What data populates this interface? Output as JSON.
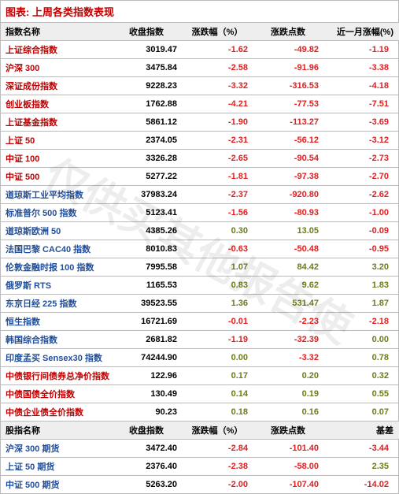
{
  "title": "图表: 上周各类指数表现",
  "watermark": "仅供买其他报告使",
  "columns": [
    "指数名称",
    "收盘指数",
    "涨跌幅（%）",
    "涨跌点数",
    "近一月涨幅(%)"
  ],
  "columns2": [
    "股指名称",
    "收盘指数",
    "涨跌幅（%）",
    "涨跌点数",
    "基差"
  ],
  "section1": [
    {
      "name": "上证综合指数",
      "nameClass": "name-red",
      "close": "3019.47",
      "pct": "-1.62",
      "pctClass": "red",
      "pts": "-49.82",
      "ptsClass": "red",
      "m": "-1.19",
      "mClass": "red"
    },
    {
      "name": "沪深 300",
      "nameClass": "name-red",
      "close": "3475.84",
      "pct": "-2.58",
      "pctClass": "red",
      "pts": "-91.96",
      "ptsClass": "red",
      "m": "-3.38",
      "mClass": "red"
    },
    {
      "name": "深证成份指数",
      "nameClass": "name-red",
      "close": "9228.23",
      "pct": "-3.32",
      "pctClass": "red",
      "pts": "-316.53",
      "ptsClass": "red",
      "m": "-4.18",
      "mClass": "red"
    },
    {
      "name": "创业板指数",
      "nameClass": "name-red",
      "close": "1762.88",
      "pct": "-4.21",
      "pctClass": "red",
      "pts": "-77.53",
      "ptsClass": "red",
      "m": "-7.51",
      "mClass": "red"
    },
    {
      "name": "上证基金指数",
      "nameClass": "name-red",
      "close": "5861.12",
      "pct": "-1.90",
      "pctClass": "red",
      "pts": "-113.27",
      "ptsClass": "red",
      "m": "-3.69",
      "mClass": "red"
    },
    {
      "name": "上证 50",
      "nameClass": "name-red",
      "close": "2374.05",
      "pct": "-2.31",
      "pctClass": "red",
      "pts": "-56.12",
      "ptsClass": "red",
      "m": "-3.12",
      "mClass": "red"
    },
    {
      "name": "中证 100",
      "nameClass": "name-red",
      "close": "3326.28",
      "pct": "-2.65",
      "pctClass": "red",
      "pts": "-90.54",
      "ptsClass": "red",
      "m": "-2.73",
      "mClass": "red"
    },
    {
      "name": "中证 500",
      "nameClass": "name-red",
      "close": "5277.22",
      "pct": "-1.81",
      "pctClass": "red",
      "pts": "-97.38",
      "ptsClass": "red",
      "m": "-2.70",
      "mClass": "red"
    },
    {
      "name": "道琼斯工业平均指数",
      "nameClass": "name-blue",
      "close": "37983.24",
      "pct": "-2.37",
      "pctClass": "red",
      "pts": "-920.80",
      "ptsClass": "red",
      "m": "-2.62",
      "mClass": "red"
    },
    {
      "name": "标准普尔 500 指数",
      "nameClass": "name-blue",
      "close": "5123.41",
      "pct": "-1.56",
      "pctClass": "red",
      "pts": "-80.93",
      "ptsClass": "red",
      "m": "-1.00",
      "mClass": "red"
    },
    {
      "name": "道琼斯欧洲 50",
      "nameClass": "name-blue",
      "close": "4385.26",
      "pct": "0.30",
      "pctClass": "olive",
      "pts": "13.05",
      "ptsClass": "olive",
      "m": "-0.09",
      "mClass": "red"
    },
    {
      "name": "法国巴黎 CAC40 指数",
      "nameClass": "name-blue",
      "close": "8010.83",
      "pct": "-0.63",
      "pctClass": "red",
      "pts": "-50.48",
      "ptsClass": "red",
      "m": "-0.95",
      "mClass": "red"
    },
    {
      "name": "伦敦金融时报 100 指数",
      "nameClass": "name-blue",
      "close": "7995.58",
      "pct": "1.07",
      "pctClass": "olive",
      "pts": "84.42",
      "ptsClass": "olive",
      "m": "3.20",
      "mClass": "olive"
    },
    {
      "name": "俄罗斯 RTS",
      "nameClass": "name-blue",
      "close": "1165.53",
      "pct": "0.83",
      "pctClass": "olive",
      "pts": "9.62",
      "ptsClass": "olive",
      "m": "1.83",
      "mClass": "olive"
    },
    {
      "name": "东京日经 225 指数",
      "nameClass": "name-blue",
      "close": "39523.55",
      "pct": "1.36",
      "pctClass": "olive",
      "pts": "531.47",
      "ptsClass": "olive",
      "m": "1.87",
      "mClass": "olive"
    },
    {
      "name": "恒生指数",
      "nameClass": "name-blue",
      "close": "16721.69",
      "pct": "-0.01",
      "pctClass": "red",
      "pts": "-2.23",
      "ptsClass": "red",
      "m": "-2.18",
      "mClass": "red"
    },
    {
      "name": "韩国综合指数",
      "nameClass": "name-blue",
      "close": "2681.82",
      "pct": "-1.19",
      "pctClass": "red",
      "pts": "-32.39",
      "ptsClass": "red",
      "m": "0.00",
      "mClass": "olive"
    },
    {
      "name": "印度孟买 Sensex30 指数",
      "nameClass": "name-blue",
      "close": "74244.90",
      "pct": "0.00",
      "pctClass": "olive",
      "pts": "-3.32",
      "ptsClass": "red",
      "m": "0.78",
      "mClass": "olive"
    },
    {
      "name": "中债银行间债券总净价指数",
      "nameClass": "name-red",
      "close": "122.96",
      "pct": "0.17",
      "pctClass": "olive",
      "pts": "0.20",
      "ptsClass": "olive",
      "m": "0.32",
      "mClass": "olive"
    },
    {
      "name": "中债国债全价指数",
      "nameClass": "name-red",
      "close": "130.49",
      "pct": "0.14",
      "pctClass": "olive",
      "pts": "0.19",
      "ptsClass": "olive",
      "m": "0.55",
      "mClass": "olive"
    },
    {
      "name": "中债企业债全价指数",
      "nameClass": "name-red",
      "close": "90.23",
      "pct": "0.18",
      "pctClass": "olive",
      "pts": "0.16",
      "ptsClass": "olive",
      "m": "0.07",
      "mClass": "olive"
    }
  ],
  "section2": [
    {
      "name": "沪深 300 期货",
      "nameClass": "name-blue",
      "close": "3472.40",
      "pct": "-2.84",
      "pctClass": "red",
      "pts": "-101.40",
      "ptsClass": "red",
      "m": "-3.44",
      "mClass": "red"
    },
    {
      "name": "上证 50 期货",
      "nameClass": "name-blue",
      "close": "2376.40",
      "pct": "-2.38",
      "pctClass": "red",
      "pts": "-58.00",
      "ptsClass": "red",
      "m": "2.35",
      "mClass": "olive"
    },
    {
      "name": "中证 500 期货",
      "nameClass": "name-blue",
      "close": "5263.20",
      "pct": "-2.00",
      "pctClass": "red",
      "pts": "-107.40",
      "ptsClass": "red",
      "m": "-14.02",
      "mClass": "red"
    }
  ]
}
